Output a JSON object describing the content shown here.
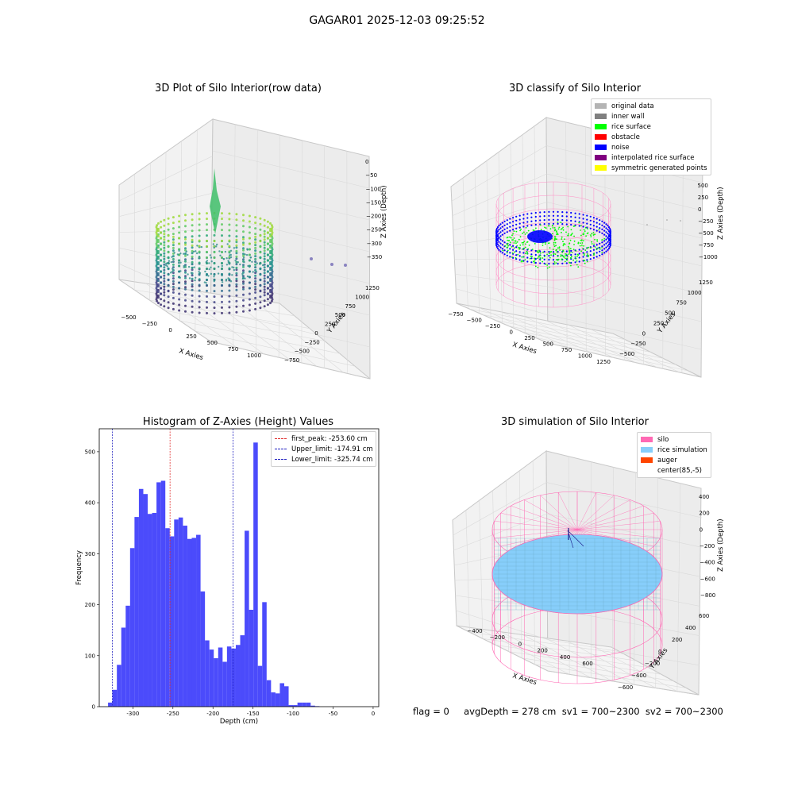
{
  "figure": {
    "suptitle": "GAGAR01 2025-12-03 09:25:52"
  },
  "colors": {
    "hist_bar": "#4b4bfb",
    "first_peak_line": "#e03030",
    "limit_lines": "#2020c0",
    "silo": "#ff69b4",
    "rice": "#87cefa",
    "auger": "#ff4500",
    "viridis_dark": "#3b2f6e",
    "viridis_mid": "#2f8f8c",
    "viridis_light": "#9ed93a",
    "classify_green": "#00ff00",
    "classify_blue": "#0000ff"
  },
  "panel1": {
    "title": "3D Plot of Silo Interior(row data)",
    "x_label": "X Axies",
    "y_label": "Y Axies",
    "z_label": "Z Axies (Depth)",
    "x_ticks": [
      "−500",
      "−250",
      "0",
      "250",
      "500",
      "750",
      "1000"
    ],
    "y_ticks": [
      "−750",
      "−500",
      "−250",
      "0",
      "250",
      "500",
      "750",
      "1000",
      "1250"
    ],
    "z_ticks": [
      "0",
      "−50",
      "−100",
      "−150",
      "−200",
      "−250",
      "−300",
      "−350"
    ]
  },
  "panel2": {
    "title": "3D classify of Silo Interior",
    "x_label": "X Axies",
    "y_label": "Y Axies",
    "z_label": "Z Axies (Depth)",
    "x_ticks": [
      "−750",
      "−500",
      "−250",
      "0",
      "250",
      "500",
      "750",
      "1000",
      "1250"
    ],
    "y_ticks": [
      "−500",
      "−250",
      "0",
      "250",
      "500",
      "750",
      "1000",
      "1250"
    ],
    "z_ticks": [
      "1000",
      "750",
      "500",
      "250",
      "0",
      "−250",
      "−500",
      "−750",
      "−1000"
    ],
    "legend": [
      {
        "label": "original data",
        "color": "#b4b4b4"
      },
      {
        "label": "inner wall",
        "color": "#808080"
      },
      {
        "label": "rice surface",
        "color": "#00ff00"
      },
      {
        "label": "obstacle",
        "color": "#ff0000"
      },
      {
        "label": "noise",
        "color": "#0000ff"
      },
      {
        "label": "interpolated rice surface",
        "color": "#800080"
      },
      {
        "label": "symmetric generated points",
        "color": "#ffff00"
      }
    ]
  },
  "panel3": {
    "title": "Histogram of Z-Axies (Height) Values",
    "x_label": "Depth (cm)",
    "y_label": "Frequency",
    "legend": [
      {
        "label": "first_peak: -253.60 cm",
        "color": "#e03030"
      },
      {
        "label": "Upper_limit: -174.91 cm",
        "color": "#2020c0"
      },
      {
        "label": "Lower_limit: -325.74 cm",
        "color": "#2020c0"
      }
    ]
  },
  "panel4": {
    "title": "3D simulation of Silo Interior",
    "x_label": "X Axies",
    "y_label": "Y Axies",
    "z_label": "Z Axies (Depth)",
    "x_ticks": [
      "−400",
      "−200",
      "0",
      "200",
      "400",
      "600"
    ],
    "y_ticks": [
      "−600",
      "−400",
      "−200",
      "0",
      "200",
      "400",
      "600"
    ],
    "z_ticks": [
      "400",
      "200",
      "0",
      "−200",
      "−400",
      "−600",
      "−800"
    ],
    "legend": [
      {
        "label": "silo",
        "color": "#ff69b4"
      },
      {
        "label": "rice simulation",
        "color": "#87cefa"
      },
      {
        "label": "auger",
        "color": "#ff4500"
      },
      {
        "label": "center(85,-5)",
        "color": "#ffffff"
      }
    ]
  },
  "status": {
    "text": "flag = 0     avgDepth = 278 cm  sv1 = 700~2300  sv2 = 700~2300"
  },
  "chart_data": [
    {
      "type": "scatter",
      "title": "3D Plot of Silo Interior(row data)",
      "xlabel": "X Axies",
      "ylabel": "Y Axies",
      "zlabel": "Z Axies (Depth)",
      "xlim": [
        -600,
        1100
      ],
      "ylim": [
        -750,
        1350
      ],
      "zlim": [
        -375,
        0
      ],
      "colormap": "viridis"
    },
    {
      "type": "scatter",
      "title": "3D classify of Silo Interior",
      "xlabel": "X Axies",
      "ylabel": "Y Axies",
      "zlabel": "Z Axies (Depth)",
      "xlim": [
        -750,
        1250
      ],
      "ylim": [
        -600,
        1350
      ],
      "zlim": [
        -1000,
        1000
      ],
      "series": [
        {
          "name": "original data"
        },
        {
          "name": "inner wall"
        },
        {
          "name": "rice surface"
        },
        {
          "name": "obstacle"
        },
        {
          "name": "noise"
        },
        {
          "name": "interpolated rice surface"
        },
        {
          "name": "symmetric generated points"
        }
      ]
    },
    {
      "type": "bar",
      "title": "Histogram of Z-Axies (Height) Values",
      "xlabel": "Depth (cm)",
      "ylabel": "Frequency",
      "xlim": [
        -342,
        7
      ],
      "ylim": [
        0,
        545
      ],
      "x_ticks": [
        -300,
        -250,
        -200,
        -150,
        -100,
        -50,
        0
      ],
      "y_ticks": [
        0,
        100,
        200,
        300,
        400,
        500
      ],
      "bin_width": 5.5,
      "bin_start": -331,
      "values": [
        8,
        33,
        82,
        155,
        198,
        311,
        372,
        427,
        417,
        378,
        380,
        440,
        443,
        350,
        334,
        367,
        371,
        355,
        329,
        331,
        337,
        226,
        130,
        112,
        95,
        116,
        88,
        118,
        114,
        121,
        140,
        345,
        190,
        518,
        80,
        205,
        52,
        28,
        26,
        46,
        40,
        3,
        3,
        8,
        8,
        8,
        2,
        1
      ],
      "vlines": [
        {
          "name": "first_peak",
          "x": -253.6
        },
        {
          "name": "Upper_limit",
          "x": -174.91
        },
        {
          "name": "Lower_limit",
          "x": -325.74
        }
      ],
      "legend_position": "top-right"
    },
    {
      "type": "scatter",
      "title": "3D simulation of Silo Interior",
      "xlabel": "X Axies",
      "ylabel": "Y Axies",
      "zlabel": "Z Axies (Depth)",
      "xlim": [
        -500,
        700
      ],
      "ylim": [
        -700,
        700
      ],
      "zlim": [
        -900,
        450
      ],
      "series": [
        {
          "name": "silo"
        },
        {
          "name": "rice simulation"
        },
        {
          "name": "auger"
        },
        {
          "name": "center(85,-5)"
        }
      ]
    }
  ]
}
